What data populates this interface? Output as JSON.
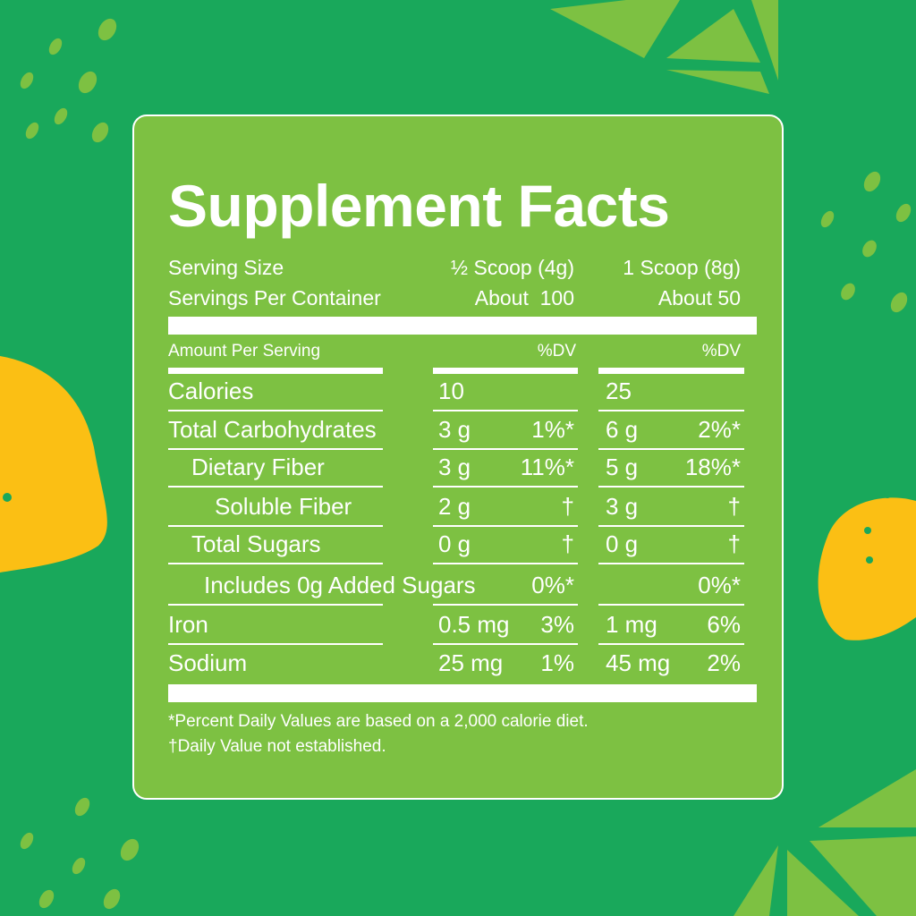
{
  "colors": {
    "background": "#19a85b",
    "panel": "#7dc142",
    "lemon": "#fbbf14",
    "lime": "#7dc142",
    "text": "#ffffff"
  },
  "title": "Supplement Facts",
  "serving": {
    "size_label": "Serving Size",
    "size_half": "½ Scoop (4g)",
    "size_full": "1 Scoop (8g)",
    "per_container_label": "Servings Per Container",
    "per_container_half": "About  100",
    "per_container_full": "About 50"
  },
  "header": {
    "amount_label": "Amount Per Serving",
    "dv_half": "%DV",
    "dv_full": "%DV"
  },
  "rows": [
    {
      "label": "Calories",
      "a1": "10",
      "d1": "",
      "a2": "25",
      "d2": ""
    },
    {
      "label": "Total Carbohydrates",
      "a1": "3 g",
      "d1": "1%*",
      "a2": "6 g",
      "d2": "2%*"
    },
    {
      "label": "Dietary Fiber",
      "a1": "3 g",
      "d1": "11%*",
      "a2": "5 g",
      "d2": "18%*"
    },
    {
      "label": "Soluble Fiber",
      "a1": "2 g",
      "d1": "†",
      "a2": "3 g",
      "d2": "†"
    },
    {
      "label": "Total Sugars",
      "a1": "0 g",
      "d1": "†",
      "a2": "0 g",
      "d2": "†"
    },
    {
      "label": "Includes 0g Added Sugars",
      "a1": "",
      "d1": "0%*",
      "a2": "",
      "d2": "0%*"
    },
    {
      "label": "Iron",
      "a1": "0.5 mg",
      "d1": "3%",
      "a2": "1 mg",
      "d2": "6%"
    },
    {
      "label": "Sodium",
      "a1": "25 mg",
      "d1": "1%",
      "a2": "45 mg",
      "d2": "2%"
    }
  ],
  "footnotes": [
    "*Percent Daily Values are based on a 2,000 calorie diet.",
    "†Daily Value not established."
  ]
}
